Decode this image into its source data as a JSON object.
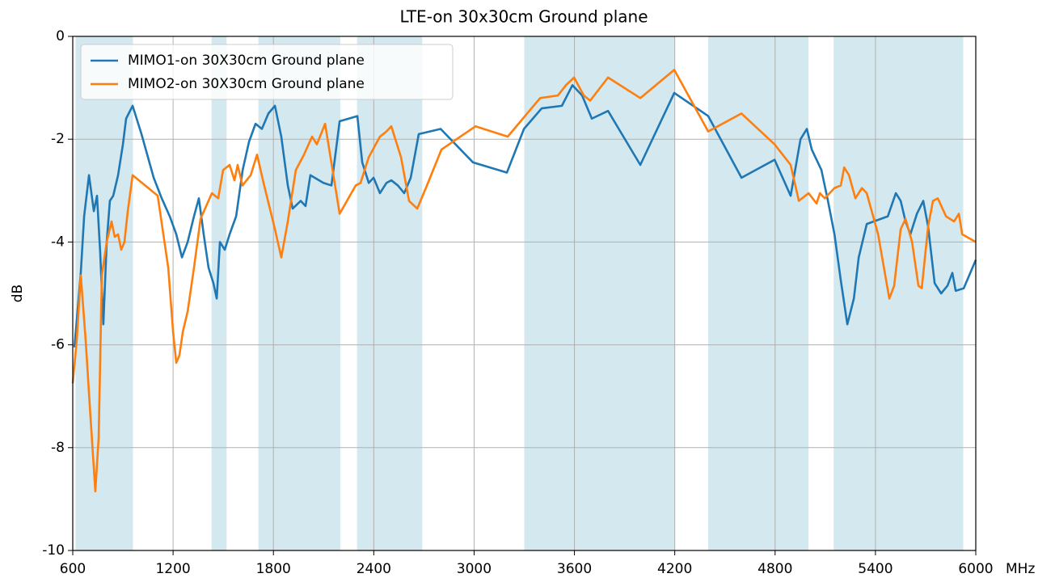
{
  "chart_data": {
    "type": "line",
    "title": "LTE-on 30x30cm Ground plane",
    "ylabel": "dB",
    "xlabel": "MHz",
    "xlim": [
      600,
      6000
    ],
    "xticks": [
      600,
      1200,
      1800,
      2400,
      3000,
      3600,
      4200,
      4800,
      5400,
      6000
    ],
    "ylim": [
      -10,
      0
    ],
    "yticks": [
      0,
      -2,
      -4,
      -6,
      -8,
      -10
    ],
    "grid": true,
    "legend": "upper left",
    "shaded_ranges": [
      [
        617,
        960
      ],
      [
        1430,
        1520
      ],
      [
        1710,
        2200
      ],
      [
        2300,
        2690
      ],
      [
        3300,
        4200
      ],
      [
        4400,
        5000
      ],
      [
        5150,
        5925
      ]
    ],
    "shaded_color": "#d4e8f0",
    "series": [
      {
        "name": "MIMO1-on 30X30cm Ground plane",
        "color": "#1f77b4",
        "x": [
          610,
          648,
          668,
          697,
          726,
          745,
          764,
          783,
          803,
          822,
          842,
          871,
          900,
          919,
          958,
          1011,
          1084,
          1132,
          1180,
          1219,
          1253,
          1287,
          1325,
          1354,
          1383,
          1412,
          1441,
          1461,
          1480,
          1509,
          1538,
          1577,
          1616,
          1654,
          1693,
          1731,
          1770,
          1809,
          1847,
          1886,
          1915,
          1963,
          1992,
          2021,
          2099,
          2147,
          2196,
          2302,
          2331,
          2370,
          2399,
          2437,
          2476,
          2505,
          2544,
          2582,
          2621,
          2669,
          2800,
          2993,
          3196,
          3298,
          3404,
          3525,
          3588,
          3646,
          3704,
          3801,
          3994,
          4197,
          4400,
          4599,
          4797,
          4893,
          4952,
          4990,
          5019,
          5077,
          5116,
          5155,
          5193,
          5232,
          5271,
          5300,
          5348,
          5474,
          5522,
          5551,
          5580,
          5609,
          5648,
          5686,
          5715,
          5754,
          5793,
          5831,
          5860,
          5880,
          5928,
          6000
        ],
        "values": [
          -6.05,
          -4.6,
          -3.5,
          -2.7,
          -3.4,
          -3.1,
          -4.2,
          -5.6,
          -4.0,
          -3.2,
          -3.1,
          -2.7,
          -2.1,
          -1.6,
          -1.35,
          -1.9,
          -2.75,
          -3.15,
          -3.5,
          -3.85,
          -4.3,
          -4.0,
          -3.5,
          -3.15,
          -3.85,
          -4.5,
          -4.8,
          -5.1,
          -4.0,
          -4.15,
          -3.85,
          -3.5,
          -2.6,
          -2.05,
          -1.7,
          -1.8,
          -1.5,
          -1.35,
          -1.95,
          -2.9,
          -3.35,
          -3.2,
          -3.3,
          -2.7,
          -2.85,
          -2.9,
          -1.65,
          -1.55,
          -2.45,
          -2.85,
          -2.75,
          -3.05,
          -2.85,
          -2.8,
          -2.9,
          -3.05,
          -2.75,
          -1.9,
          -1.8,
          -2.45,
          -2.65,
          -1.8,
          -1.4,
          -1.35,
          -0.95,
          -1.15,
          -1.6,
          -1.45,
          -2.5,
          -1.1,
          -1.55,
          -2.75,
          -2.4,
          -3.1,
          -2.0,
          -1.8,
          -2.2,
          -2.6,
          -3.2,
          -3.85,
          -4.75,
          -5.6,
          -5.1,
          -4.3,
          -3.65,
          -3.5,
          -3.05,
          -3.2,
          -3.6,
          -3.85,
          -3.45,
          -3.2,
          -3.7,
          -4.8,
          -5.0,
          -4.85,
          -4.6,
          -4.95,
          -4.9,
          -4.35
        ]
      },
      {
        "name": "MIMO2-on 30X30cm Ground plane",
        "color": "#ff7f0e",
        "x": [
          600,
          624,
          648,
          677,
          706,
          735,
          755,
          774,
          803,
          832,
          851,
          871,
          890,
          909,
          929,
          958,
          1108,
          1171,
          1200,
          1219,
          1238,
          1258,
          1287,
          1325,
          1364,
          1432,
          1470,
          1499,
          1538,
          1567,
          1586,
          1615,
          1664,
          1702,
          1741,
          1809,
          1847,
          1886,
          1934,
          1983,
          2031,
          2060,
          2109,
          2196,
          2292,
          2321,
          2370,
          2437,
          2476,
          2505,
          2563,
          2611,
          2660,
          2718,
          2805,
          3008,
          3201,
          3317,
          3395,
          3501,
          3549,
          3598,
          3656,
          3694,
          3801,
          3994,
          4197,
          4400,
          4599,
          4797,
          4893,
          4942,
          5000,
          5048,
          5068,
          5097,
          5155,
          5193,
          5213,
          5242,
          5280,
          5319,
          5348,
          5416,
          5483,
          5512,
          5551,
          5580,
          5619,
          5657,
          5677,
          5715,
          5744,
          5773,
          5822,
          5870,
          5899,
          5919,
          6000
        ],
        "values": [
          -6.75,
          -5.9,
          -4.65,
          -5.9,
          -7.4,
          -8.85,
          -7.8,
          -4.65,
          -4.0,
          -3.6,
          -3.9,
          -3.85,
          -4.15,
          -4.0,
          -3.4,
          -2.7,
          -3.1,
          -4.5,
          -5.75,
          -6.35,
          -6.2,
          -5.75,
          -5.35,
          -4.5,
          -3.55,
          -3.05,
          -3.15,
          -2.6,
          -2.5,
          -2.8,
          -2.5,
          -2.9,
          -2.7,
          -2.3,
          -2.85,
          -3.75,
          -4.3,
          -3.6,
          -2.6,
          -2.3,
          -1.95,
          -2.1,
          -1.7,
          -3.45,
          -2.9,
          -2.85,
          -2.35,
          -1.95,
          -1.85,
          -1.75,
          -2.35,
          -3.2,
          -3.35,
          -2.9,
          -2.2,
          -1.75,
          -1.95,
          -1.5,
          -1.2,
          -1.15,
          -0.95,
          -0.8,
          -1.15,
          -1.25,
          -0.8,
          -1.2,
          -0.65,
          -1.85,
          -1.5,
          -2.1,
          -2.5,
          -3.2,
          -3.05,
          -3.25,
          -3.05,
          -3.15,
          -2.95,
          -2.9,
          -2.55,
          -2.7,
          -3.15,
          -2.95,
          -3.05,
          -3.85,
          -5.1,
          -4.85,
          -3.75,
          -3.55,
          -4.0,
          -4.85,
          -4.9,
          -3.7,
          -3.2,
          -3.15,
          -3.5,
          -3.6,
          -3.45,
          -3.85,
          -4.0
        ]
      }
    ]
  }
}
